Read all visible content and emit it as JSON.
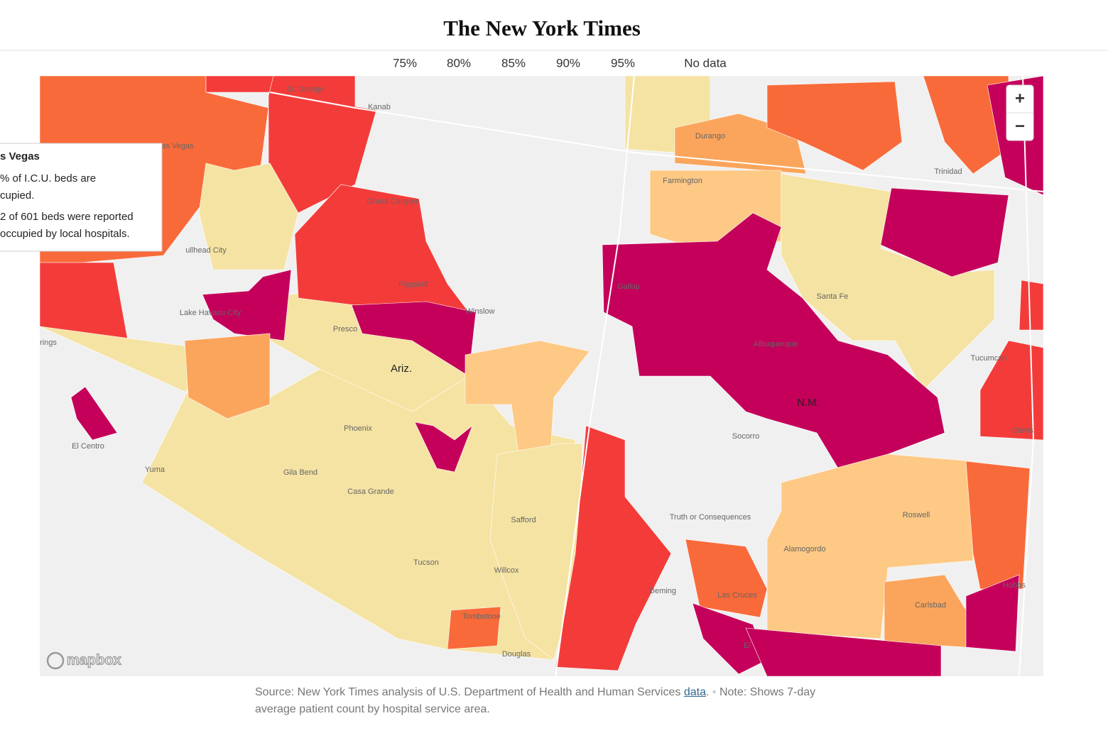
{
  "header": {
    "logo": "The New York Times"
  },
  "legend": {
    "labels": [
      "75%",
      "80%",
      "85%",
      "90%",
      "95%",
      "No data"
    ]
  },
  "tooltip": {
    "title": "s Vegas",
    "lines": [
      "% of I.C.U. beds are",
      "cupied.",
      "2 of 601 beds were reported",
      "occupied by local hospitals."
    ]
  },
  "map": {
    "state_labels": [
      "Ariz.",
      "N.M."
    ],
    "places": [
      "St. George",
      "Kanab",
      "as Vegas",
      "Grand Canyon",
      "Durango",
      "Trinidad",
      "Farmington",
      "ullhead City",
      "Flagstaff",
      "Gallup",
      "Santa Fe",
      "Lake Havasu City",
      "Winslow",
      "Presco",
      "Albuquerque",
      "Tucumcari",
      "rings",
      "Phoenix",
      "Socorro",
      "Clovis",
      "El Centro",
      "Yuma",
      "Gila Bend",
      "Casa Grande",
      "Roswell",
      "Truth or Consequences",
      "Safford",
      "Alamogordo",
      "Tucson",
      "Willcox",
      "Hobbs",
      "Deming",
      "Las Cruces",
      "Carlsbad",
      "Tombstone",
      "El",
      "Douglas"
    ],
    "attribution": "mapbox",
    "zoom_in": "+",
    "zoom_out": "−"
  },
  "footer": {
    "source": "Source: New York Times analysis of U.S. Department of Health and Human Services",
    "link": "data",
    "source_end": ".",
    "separator": "•",
    "note": "Note: Shows 7-day average patient count by hospital service area."
  }
}
